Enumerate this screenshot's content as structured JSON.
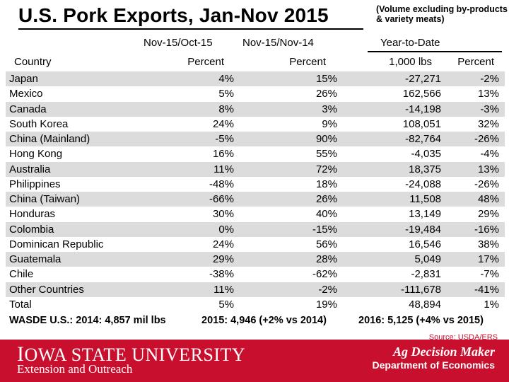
{
  "title": "U.S. Pork Exports, Jan-Nov 2015",
  "note": "(Volume excluding by-products & variety meats)",
  "headers": {
    "col1_period": "Nov-15/Oct-15",
    "col2_period": "Nov-15/Nov-14",
    "ytd": "Year-to-Date",
    "country": "Country",
    "col1_unit": "Percent",
    "col2_unit": "Percent",
    "col3_unit": "1,000 lbs",
    "col4_unit": "Percent"
  },
  "rows": [
    {
      "country": "Japan",
      "c1": "4%",
      "c2": "15%",
      "c3": "-27,271",
      "c4": "-2%"
    },
    {
      "country": "Mexico",
      "c1": "5%",
      "c2": "26%",
      "c3": "162,566",
      "c4": "13%"
    },
    {
      "country": "Canada",
      "c1": "8%",
      "c2": "3%",
      "c3": "-14,198",
      "c4": "-3%"
    },
    {
      "country": "South Korea",
      "c1": "24%",
      "c2": "9%",
      "c3": "108,051",
      "c4": "32%"
    },
    {
      "country": "China (Mainland)",
      "c1": "-5%",
      "c2": "90%",
      "c3": "-82,764",
      "c4": "-26%"
    },
    {
      "country": "Hong Kong",
      "c1": "16%",
      "c2": "55%",
      "c3": "-4,035",
      "c4": "-4%"
    },
    {
      "country": "Australia",
      "c1": "11%",
      "c2": "72%",
      "c3": "18,375",
      "c4": "13%"
    },
    {
      "country": "Philippines",
      "c1": "-48%",
      "c2": "18%",
      "c3": "-24,088",
      "c4": "-26%"
    },
    {
      "country": "China (Taiwan)",
      "c1": "-66%",
      "c2": "26%",
      "c3": "11,508",
      "c4": "48%"
    },
    {
      "country": "Honduras",
      "c1": "30%",
      "c2": "40%",
      "c3": "13,149",
      "c4": "29%"
    },
    {
      "country": "Colombia",
      "c1": "0%",
      "c2": "-15%",
      "c3": "-19,484",
      "c4": "-16%"
    },
    {
      "country": "Dominican Republic",
      "c1": "24%",
      "c2": "56%",
      "c3": "16,546",
      "c4": "38%"
    },
    {
      "country": "Guatemala",
      "c1": "29%",
      "c2": "28%",
      "c3": "5,049",
      "c4": "17%"
    },
    {
      "country": "Chile",
      "c1": "-38%",
      "c2": "-62%",
      "c3": "-2,831",
      "c4": "-7%"
    },
    {
      "country": "Other Countries",
      "c1": "11%",
      "c2": "-2%",
      "c3": "-111,678",
      "c4": "-41%"
    },
    {
      "country": "Total",
      "c1": "5%",
      "c2": "19%",
      "c3": "48,894",
      "c4": "1%"
    }
  ],
  "footer": {
    "wasde": "WASDE U.S.: 2014: 4,857 mil lbs",
    "y2015": "2015: 4,946 (+2% vs 2014)",
    "y2016": "2016: 5,125 (+4% vs 2015)"
  },
  "source": "Source: USDA/ERS",
  "branding": {
    "university": "Iowa State University",
    "extension": "Extension and Outreach",
    "adm": "Ag Decision Maker",
    "department": "Department of Economics"
  },
  "colors": {
    "banner": "#c8102e",
    "row_shade": "#dcdcdc"
  }
}
